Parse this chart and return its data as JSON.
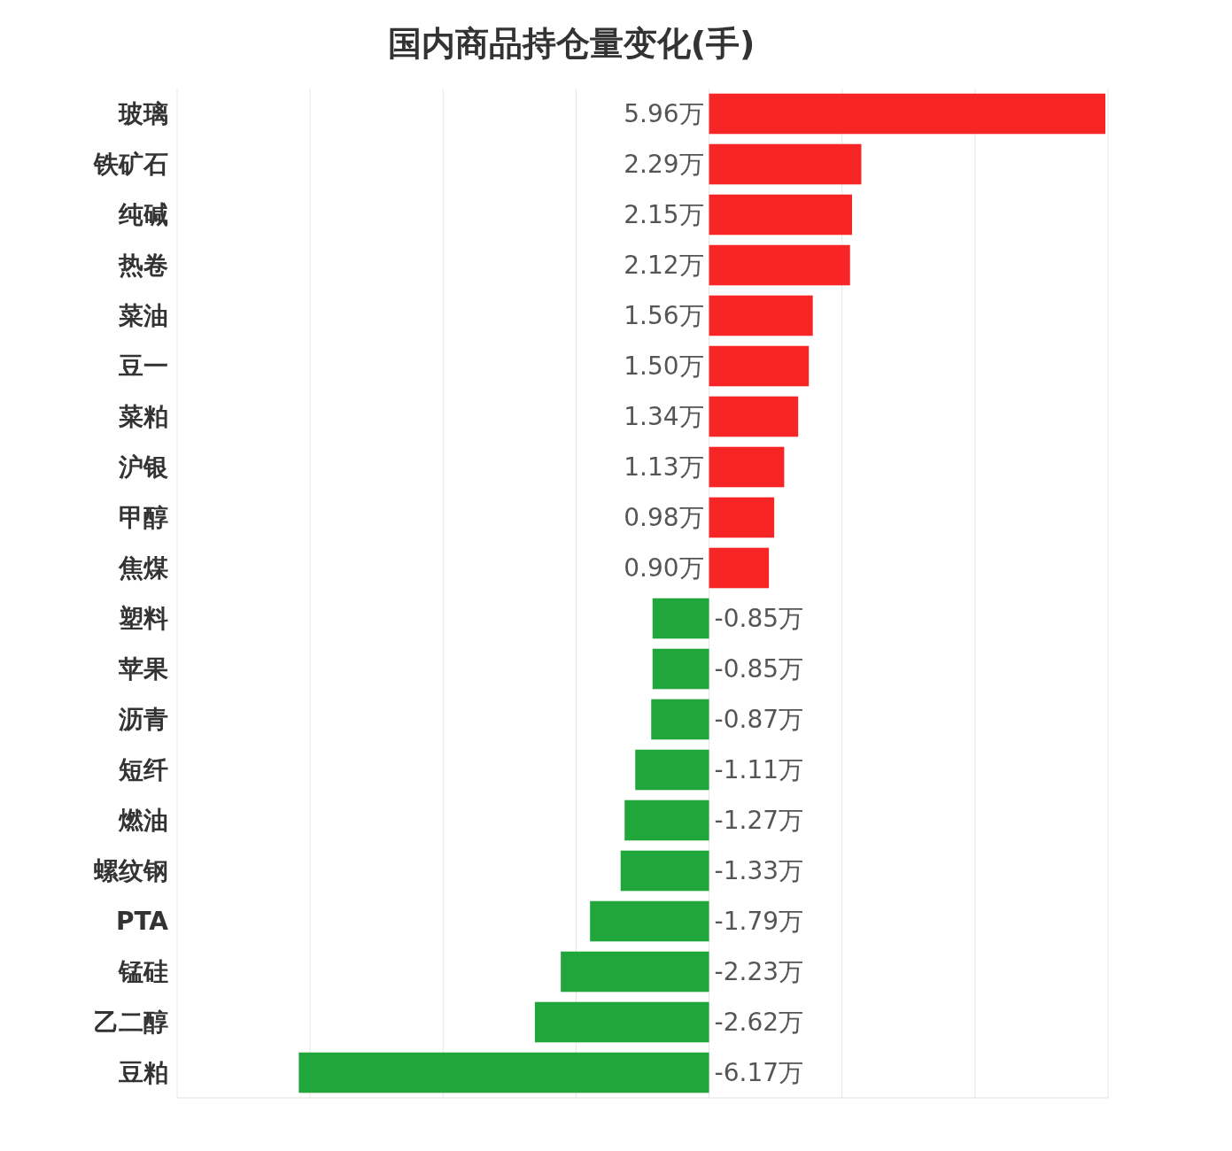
{
  "chart_data": {
    "type": "bar",
    "orientation": "horizontal",
    "title": "国内商品持仓量变化(手)",
    "categories": [
      "玻璃",
      "铁矿石",
      "纯碱",
      "热卷",
      "菜油",
      "豆一",
      "菜粕",
      "沪银",
      "甲醇",
      "焦煤",
      "塑料",
      "苹果",
      "沥青",
      "短纤",
      "燃油",
      "螺纹钢",
      "PTA",
      "锰硅",
      "乙二醇",
      "豆粕"
    ],
    "values": [
      5.96,
      2.29,
      2.15,
      2.12,
      1.56,
      1.5,
      1.34,
      1.13,
      0.98,
      0.9,
      -0.85,
      -0.85,
      -0.87,
      -1.11,
      -1.27,
      -1.33,
      -1.79,
      -2.23,
      -2.62,
      -6.17
    ],
    "value_labels": [
      "5.96万",
      "2.29万",
      "2.15万",
      "2.12万",
      "1.56万",
      "1.50万",
      "1.34万",
      "1.13万",
      "0.98万",
      "0.90万",
      "-0.85万",
      "-0.85万",
      "-0.87万",
      "-1.11万",
      "-1.27万",
      "-1.33万",
      "-1.79万",
      "-2.23万",
      "-2.62万",
      "-6.17万"
    ],
    "colors": [
      "#f82527",
      "#f82527",
      "#f82527",
      "#f82527",
      "#f82527",
      "#f82527",
      "#f82527",
      "#f82527",
      "#f82527",
      "#f82527",
      "#21a63c",
      "#21a63c",
      "#21a63c",
      "#21a63c",
      "#21a63c",
      "#21a63c",
      "#21a63c",
      "#21a63c",
      "#21a63c",
      "#21a63c"
    ],
    "xlim": [
      -8,
      6
    ],
    "xticks": [
      {
        "value": -8,
        "label": null
      },
      {
        "value": -6,
        "label": null
      },
      {
        "value": -4,
        "label": null
      },
      {
        "value": -2,
        "label": null
      },
      {
        "value": 0,
        "label": null
      },
      {
        "value": 2,
        "label": null
      },
      {
        "value": 4,
        "label": null
      },
      {
        "value": 6,
        "label": null
      }
    ],
    "grid": "x",
    "tick_labels": "y"
  }
}
